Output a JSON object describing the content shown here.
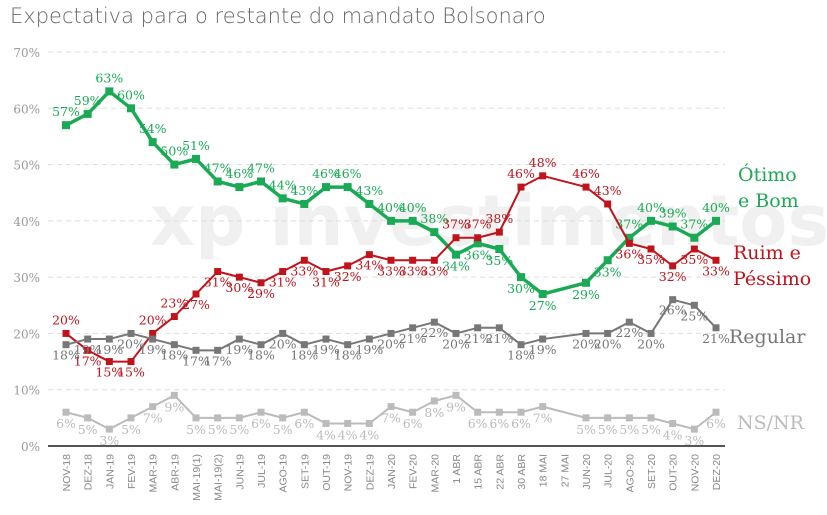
{
  "chart_data": {
    "type": "line",
    "title": "Expectativa para o restante do mandato Bolsonaro",
    "ylim": [
      0,
      70
    ],
    "yticks": [
      "0%",
      "10%",
      "20%",
      "30%",
      "40%",
      "50%",
      "60%",
      "70%"
    ],
    "grid": true,
    "legend_placement": "right",
    "watermark": "xp investimentos",
    "categories": [
      "NOV-18",
      "DEZ-18",
      "JAN-19",
      "FEV-19",
      "MAR-19",
      "ABR-19",
      "MAI-19(1)",
      "MAI-19(2)",
      "JUN-19",
      "JUL-19",
      "AGO-19",
      "SET-19",
      "OUT-19",
      "NOV-19",
      "DEZ-19",
      "JAN-20",
      "FEV-20",
      "MAR-20",
      "1 ABR",
      "15 ABR",
      "22 ABR",
      "30 ABR",
      "18 MAI",
      "27 MAI",
      "JUN-20",
      "JUL-20",
      "AGO-20",
      "SET-20",
      "OUT-20",
      "NOV-20",
      "DEZ-20"
    ],
    "series": [
      {
        "name": "Ótimo e Bom",
        "color": "#1aaa55",
        "values": [
          57,
          59,
          63,
          60,
          54,
          50,
          51,
          47,
          46,
          47,
          44,
          43,
          46,
          46,
          43,
          40,
          40,
          38,
          34,
          36,
          35,
          30,
          27,
          null,
          29,
          33,
          37,
          40,
          39,
          37,
          40
        ]
      },
      {
        "name": "Ruim e Péssimo",
        "color": "#c0141c",
        "values": [
          20,
          17,
          15,
          15,
          20,
          23,
          27,
          31,
          30,
          29,
          31,
          33,
          31,
          32,
          34,
          33,
          33,
          33,
          37,
          37,
          38,
          46,
          48,
          null,
          46,
          43,
          36,
          35,
          32,
          35,
          33
        ]
      },
      {
        "name": "Regular",
        "color": "#777777",
        "values": [
          18,
          19,
          19,
          20,
          19,
          18,
          17,
          17,
          19,
          18,
          20,
          18,
          19,
          18,
          19,
          20,
          21,
          22,
          20,
          21,
          21,
          18,
          19,
          null,
          20,
          20,
          22,
          20,
          26,
          25,
          21
        ]
      },
      {
        "name": "NS/NR",
        "color": "#bbbbbb",
        "values": [
          6,
          5,
          3,
          5,
          7,
          9,
          5,
          5,
          5,
          6,
          5,
          6,
          4,
          4,
          4,
          7,
          6,
          8,
          9,
          6,
          6,
          6,
          7,
          null,
          5,
          5,
          5,
          5,
          4,
          3,
          6
        ]
      }
    ]
  },
  "legend": {
    "otimo_line1": "Ótimo",
    "otimo_line2": "e Bom",
    "ruim_line1": "Ruim e",
    "ruim_line2": "Péssimo",
    "regular": "Regular",
    "nsnr": "NS/NR"
  }
}
